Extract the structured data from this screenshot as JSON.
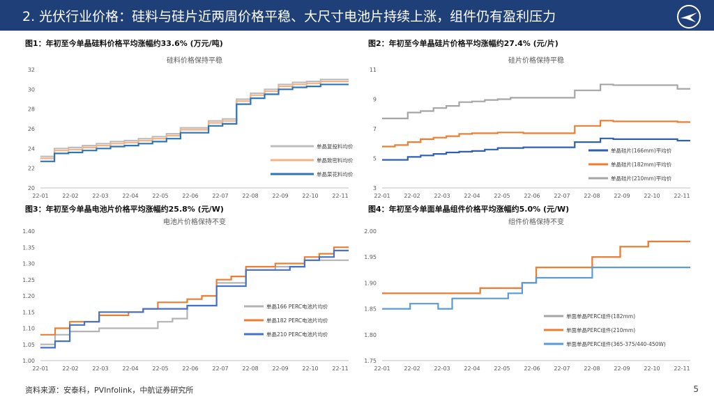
{
  "header": {
    "title": "2. 光伏行业价格：硅料与硅片近两周价格平稳、大尺寸电池片持续上涨，组件仍有盈利压力"
  },
  "footer": {
    "source": "资料来源：安泰科，PVInfolink，中航证券研究所",
    "page": "5"
  },
  "months": [
    "22-01",
    "22-02",
    "22-03",
    "22-04",
    "22-05",
    "22-06",
    "22-07",
    "22-08",
    "22-09",
    "22-10",
    "22-11"
  ],
  "chart_data": [
    {
      "type": "line",
      "caption": "图1：年初至今单晶硅料价格平均涨幅约33.6% (万元/吨)",
      "title": "硅料价格保持平稳",
      "ylim": [
        20,
        32
      ],
      "yticks": [
        "20",
        "22",
        "24",
        "26",
        "28",
        "30",
        "32"
      ],
      "legend_position": "bottom-right",
      "series": [
        {
          "name": "单晶复投料均价",
          "color": "#bdbdbd",
          "values": [
            23.2,
            24.0,
            24.1,
            24.3,
            24.5,
            24.7,
            24.8,
            25.0,
            25.2,
            25.5,
            26.1,
            26.1,
            26.8,
            27.0,
            29.0,
            29.6,
            30.0,
            30.5,
            30.7,
            30.8,
            31.0,
            31.0,
            31.0
          ]
        },
        {
          "name": "单晶致密料均价",
          "color": "#f4b183",
          "values": [
            23.0,
            23.8,
            23.9,
            24.1,
            24.3,
            24.5,
            24.6,
            24.8,
            25.0,
            25.3,
            25.9,
            25.9,
            26.6,
            26.8,
            28.8,
            29.4,
            29.8,
            30.3,
            30.5,
            30.6,
            30.8,
            30.8,
            30.8
          ]
        },
        {
          "name": "单晶菜花料均价",
          "color": "#2e75b6",
          "values": [
            22.7,
            23.5,
            23.6,
            23.8,
            24.0,
            24.2,
            24.3,
            24.5,
            24.7,
            25.0,
            25.6,
            25.6,
            26.3,
            26.5,
            28.5,
            29.1,
            29.5,
            30.0,
            30.2,
            30.3,
            30.5,
            30.5,
            30.5
          ]
        }
      ]
    },
    {
      "type": "line",
      "caption": "图2：年初至今单晶硅片价格平均涨幅约27.4% (元/片)",
      "title": "硅片价格保持平稳",
      "ylim": [
        3,
        11
      ],
      "yticks": [
        "3",
        "5",
        "7",
        "9",
        "11"
      ],
      "legend_position": "bottom-right",
      "series": [
        {
          "name": "单晶硅片(166mm)平均价",
          "color": "#2e5fb0",
          "values": [
            4.9,
            4.9,
            5.1,
            5.2,
            5.3,
            5.4,
            5.45,
            5.5,
            5.6,
            5.7,
            5.7,
            5.75,
            5.75,
            5.75,
            5.75,
            6.1,
            6.1,
            6.35,
            6.3,
            6.3,
            6.3,
            6.3,
            6.3,
            6.2,
            6.2
          ]
        },
        {
          "name": "单晶硅片(182mm)平均价",
          "color": "#ed7d31",
          "values": [
            5.8,
            5.9,
            6.1,
            6.3,
            6.4,
            6.5,
            6.65,
            6.7,
            6.7,
            6.75,
            6.75,
            6.7,
            6.7,
            6.7,
            6.7,
            7.2,
            7.2,
            7.55,
            7.5,
            7.5,
            7.5,
            7.5,
            7.5,
            7.45,
            7.45
          ]
        },
        {
          "name": "单晶硅片(210mm)平均价",
          "color": "#a5a5a5",
          "values": [
            7.7,
            7.7,
            8.1,
            8.2,
            8.4,
            8.55,
            8.8,
            8.85,
            8.95,
            9.0,
            9.1,
            9.1,
            9.1,
            9.1,
            9.1,
            9.6,
            9.6,
            10.0,
            9.95,
            9.95,
            9.95,
            9.95,
            9.95,
            9.7,
            9.7
          ]
        }
      ]
    },
    {
      "type": "line",
      "caption": "图3：年初至今单晶电池片价格平均涨幅约25.8% (元/W)",
      "title": "电池片价格保持不变",
      "ylim": [
        1.0,
        1.4
      ],
      "yticks": [
        "1.00",
        "1.05",
        "1.10",
        "1.15",
        "1.20",
        "1.25",
        "1.30",
        "1.35",
        "1.40"
      ],
      "legend_position": "bottom-right",
      "series": [
        {
          "name": "单晶166 PERC电池片均价",
          "color": "#b4b4b4",
          "values": [
            1.05,
            1.08,
            1.09,
            1.09,
            1.1,
            1.1,
            1.1,
            1.1,
            1.12,
            1.13,
            1.17,
            1.17,
            1.24,
            1.24,
            1.28,
            1.28,
            1.29,
            1.29,
            1.31,
            1.31,
            1.31,
            1.31
          ]
        },
        {
          "name": "单晶182 PERC电池片均价",
          "color": "#ed7d31",
          "values": [
            1.08,
            1.1,
            1.12,
            1.12,
            1.14,
            1.14,
            1.15,
            1.16,
            1.18,
            1.18,
            1.19,
            1.2,
            1.25,
            1.26,
            1.29,
            1.29,
            1.3,
            1.3,
            1.32,
            1.33,
            1.35,
            1.35
          ]
        },
        {
          "name": "单晶210 PERC电池片均价",
          "color": "#4472c4",
          "values": [
            1.04,
            1.06,
            1.11,
            1.12,
            1.15,
            1.15,
            1.15,
            1.16,
            1.16,
            1.16,
            1.17,
            1.17,
            1.23,
            1.23,
            1.28,
            1.28,
            1.28,
            1.29,
            1.31,
            1.32,
            1.34,
            1.34
          ]
        }
      ]
    },
    {
      "type": "line",
      "caption": "图4：年初至今单面单晶组件价格平均涨幅约5.0% (元/W)",
      "title": "组件价格保持不变",
      "ylim": [
        1.75,
        2.0
      ],
      "yticks": [
        "1.75",
        "1.80",
        "1.85",
        "1.90",
        "1.95",
        "2.00"
      ],
      "legend_position": "bottom-right",
      "series": [
        {
          "name": "单面单晶PERC组件(182mm)",
          "color": "#a5a5a5",
          "values": [
            1.88,
            1.88,
            1.88,
            1.88,
            1.88,
            1.88,
            1.88,
            1.89,
            1.89,
            1.89,
            1.9,
            1.93,
            1.93,
            1.93,
            1.93,
            1.95,
            1.95,
            1.97,
            1.97,
            1.98,
            1.98,
            1.98,
            1.98
          ]
        },
        {
          "name": "单面单晶PERC组件(210mm)",
          "color": "#ed7d31",
          "values": [
            1.88,
            1.88,
            1.88,
            1.88,
            1.88,
            1.88,
            1.88,
            1.89,
            1.89,
            1.89,
            1.9,
            1.93,
            1.93,
            1.93,
            1.93,
            1.95,
            1.95,
            1.97,
            1.97,
            1.98,
            1.98,
            1.98,
            1.98
          ]
        },
        {
          "name": "单面单晶PERC组件(365-375/440-450W)",
          "color": "#5b9bd5",
          "values": [
            1.85,
            1.85,
            1.86,
            1.86,
            1.85,
            1.87,
            1.87,
            1.87,
            1.87,
            1.88,
            1.9,
            1.91,
            1.91,
            1.91,
            1.91,
            1.93,
            1.93,
            1.93,
            1.93,
            1.93,
            1.93,
            1.93,
            1.93
          ]
        }
      ]
    }
  ]
}
